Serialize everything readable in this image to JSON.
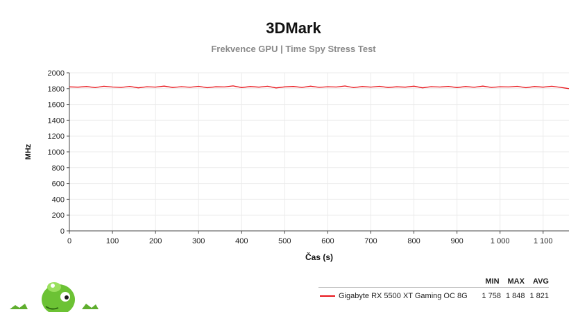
{
  "header": {
    "title": "3DMark",
    "subtitle": "Frekvence GPU | Time Spy Stress Test"
  },
  "chart_data": {
    "type": "line",
    "title": "3DMark",
    "subtitle": "Frekvence GPU | Time Spy Stress Test",
    "xlabel": "Čas (s)",
    "ylabel": "MHz",
    "xlim": [
      0,
      1160
    ],
    "ylim": [
      0,
      2000
    ],
    "x_ticks": [
      0,
      100,
      200,
      300,
      400,
      500,
      600,
      700,
      800,
      900,
      1000,
      1100
    ],
    "x_tick_labels": [
      "0",
      "100",
      "200",
      "300",
      "400",
      "500",
      "600",
      "700",
      "800",
      "900",
      "1 000",
      "1 100"
    ],
    "y_ticks": [
      0,
      200,
      400,
      600,
      800,
      1000,
      1200,
      1400,
      1600,
      1800,
      2000
    ],
    "y_tick_labels": [
      "0",
      "200",
      "400",
      "600",
      "800",
      "1000",
      "1200",
      "1400",
      "1600",
      "1800",
      "2000"
    ],
    "grid": true,
    "legend_position": "bottom-right",
    "series": [
      {
        "name": "Gigabyte RX 5500 XT Gaming OC 8G",
        "color": "#e8141a",
        "x": [
          0,
          20,
          40,
          60,
          80,
          100,
          120,
          140,
          160,
          180,
          200,
          220,
          240,
          260,
          280,
          300,
          320,
          340,
          360,
          380,
          400,
          420,
          440,
          460,
          480,
          500,
          520,
          540,
          560,
          580,
          600,
          620,
          640,
          660,
          680,
          700,
          720,
          740,
          760,
          780,
          800,
          820,
          840,
          860,
          880,
          900,
          920,
          940,
          960,
          980,
          1000,
          1020,
          1040,
          1060,
          1080,
          1100,
          1120,
          1140,
          1160
        ],
        "values": [
          1822,
          1818,
          1826,
          1812,
          1830,
          1820,
          1815,
          1828,
          1810,
          1824,
          1819,
          1832,
          1814,
          1825,
          1817,
          1829,
          1811,
          1823,
          1821,
          1834,
          1813,
          1826,
          1818,
          1830,
          1809,
          1822,
          1827,
          1815,
          1831,
          1816,
          1824,
          1820,
          1833,
          1812,
          1826,
          1819,
          1829,
          1814,
          1823,
          1818,
          1831,
          1810,
          1825,
          1820,
          1828,
          1813,
          1826,
          1817,
          1832,
          1815,
          1824,
          1821,
          1829,
          1811,
          1826,
          1818,
          1830,
          1816,
          1800
        ]
      }
    ]
  },
  "legend": {
    "headers": {
      "min": "MIN",
      "max": "MAX",
      "avg": "AVG"
    },
    "rows": [
      {
        "name": "Gigabyte RX 5500 XT Gaming OC 8G",
        "min": "1 758",
        "max": "1 848",
        "avg": "1 821",
        "color": "#e8141a"
      }
    ]
  },
  "mascot": {
    "icon": "green-alien-mascot-icon"
  }
}
